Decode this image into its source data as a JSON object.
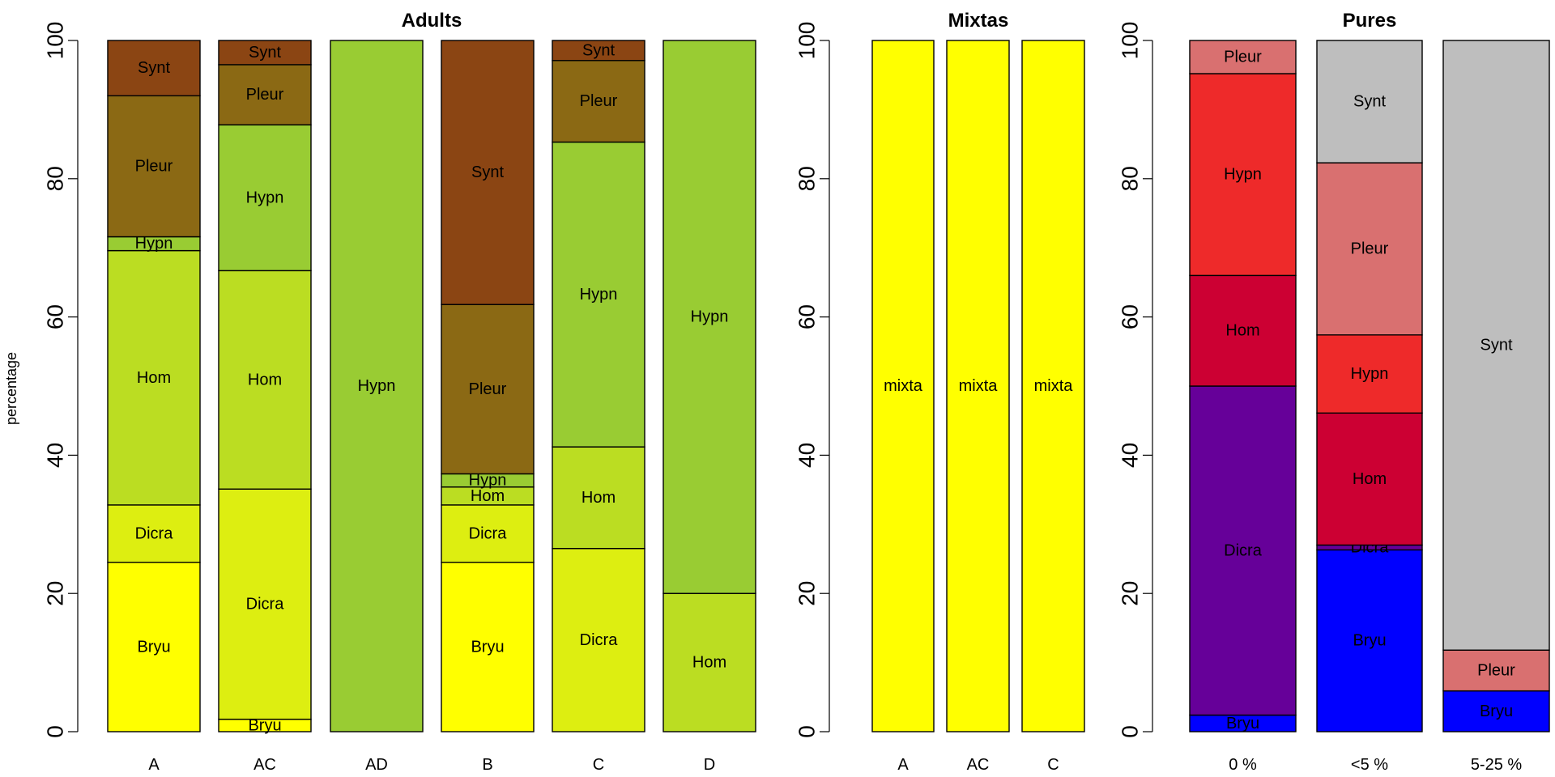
{
  "y_axis_label": "percentage",
  "chart_data": [
    {
      "type": "bar",
      "stacked": true,
      "title": "Adults",
      "ylim": [
        0,
        100
      ],
      "yticks": [
        0,
        20,
        40,
        60,
        80,
        100
      ],
      "categories": [
        "A",
        "AC",
        "AD",
        "B",
        "C",
        "D"
      ],
      "bars": [
        {
          "category": "A",
          "segments": [
            {
              "label": "Bryu",
              "value": 24.5,
              "color": "#FFFF00"
            },
            {
              "label": "Dicra",
              "value": 8.3,
              "color": "#DDEE11"
            },
            {
              "label": "Hom",
              "value": 36.8,
              "color": "#BBDD22"
            },
            {
              "label": "Hypn",
              "value": 2.0,
              "color": "#99CC33"
            },
            {
              "label": "Pleur",
              "value": 20.4,
              "color": "#8B6914"
            },
            {
              "label": "Synt",
              "value": 8.0,
              "color": "#8B4513"
            }
          ]
        },
        {
          "category": "AC",
          "segments": [
            {
              "label": "Bryu",
              "value": 1.8,
              "color": "#FFFF00"
            },
            {
              "label": "Dicra",
              "value": 33.3,
              "color": "#DDEE11"
            },
            {
              "label": "Hom",
              "value": 31.6,
              "color": "#BBDD22"
            },
            {
              "label": "Hypn",
              "value": 21.1,
              "color": "#99CC33"
            },
            {
              "label": "Pleur",
              "value": 8.7,
              "color": "#8B6914"
            },
            {
              "label": "Synt",
              "value": 3.5,
              "color": "#8B4513"
            }
          ]
        },
        {
          "category": "AD",
          "segments": [
            {
              "label": "Hypn",
              "value": 100,
              "color": "#99CC33"
            }
          ]
        },
        {
          "category": "B",
          "segments": [
            {
              "label": "Bryu",
              "value": 24.5,
              "color": "#FFFF00"
            },
            {
              "label": "Dicra",
              "value": 8.3,
              "color": "#DDEE11"
            },
            {
              "label": "Hom",
              "value": 2.6,
              "color": "#BBDD22"
            },
            {
              "label": "Hypn",
              "value": 1.9,
              "color": "#99CC33"
            },
            {
              "label": "Pleur",
              "value": 24.5,
              "color": "#8B6914"
            },
            {
              "label": "Synt",
              "value": 38.2,
              "color": "#8B4513"
            }
          ]
        },
        {
          "category": "C",
          "segments": [
            {
              "label": "Dicra",
              "value": 26.5,
              "color": "#DDEE11"
            },
            {
              "label": "Hom",
              "value": 14.7,
              "color": "#BBDD22"
            },
            {
              "label": "Hypn",
              "value": 44.1,
              "color": "#99CC33"
            },
            {
              "label": "Pleur",
              "value": 11.8,
              "color": "#8B6914"
            },
            {
              "label": "Synt",
              "value": 2.9,
              "color": "#8B4513"
            }
          ]
        },
        {
          "category": "D",
          "segments": [
            {
              "label": "Hom",
              "value": 20.0,
              "color": "#BBDD22"
            },
            {
              "label": "Hypn",
              "value": 80.0,
              "color": "#99CC33"
            }
          ]
        }
      ]
    },
    {
      "type": "bar",
      "stacked": true,
      "title": "Mixtas",
      "ylim": [
        0,
        100
      ],
      "yticks": [
        0,
        20,
        40,
        60,
        80,
        100
      ],
      "categories": [
        "A",
        "AC",
        "C"
      ],
      "bars": [
        {
          "category": "A",
          "segments": [
            {
              "label": "mixta",
              "value": 100,
              "color": "#FFFF00"
            }
          ]
        },
        {
          "category": "AC",
          "segments": [
            {
              "label": "mixta",
              "value": 100,
              "color": "#FFFF00"
            }
          ]
        },
        {
          "category": "C",
          "segments": [
            {
              "label": "mixta",
              "value": 100,
              "color": "#FFFF00"
            }
          ]
        }
      ]
    },
    {
      "type": "bar",
      "stacked": true,
      "title": "Pures",
      "ylim": [
        0,
        100
      ],
      "yticks": [
        0,
        20,
        40,
        60,
        80,
        100
      ],
      "categories": [
        "0 %",
        "<5 %",
        "5-25 %"
      ],
      "bars": [
        {
          "category": "0 %",
          "segments": [
            {
              "label": "Bryu",
              "value": 2.4,
              "color": "#0000FF"
            },
            {
              "label": "Dicra",
              "value": 47.6,
              "color": "#660099"
            },
            {
              "label": "Hom",
              "value": 16.0,
              "color": "#CC0033"
            },
            {
              "label": "Hypn",
              "value": 29.2,
              "color": "#EE2A2A"
            },
            {
              "label": "Pleur",
              "value": 4.8,
              "color": "#D97070"
            }
          ]
        },
        {
          "category": "<5 %",
          "segments": [
            {
              "label": "Bryu",
              "value": 26.3,
              "color": "#0000FF"
            },
            {
              "label": "Dicra",
              "value": 0.7,
              "color": "#660099"
            },
            {
              "label": "Hom",
              "value": 19.1,
              "color": "#CC0033"
            },
            {
              "label": "Hypn",
              "value": 11.3,
              "color": "#EE2A2A"
            },
            {
              "label": "Pleur",
              "value": 24.9,
              "color": "#D97070"
            },
            {
              "label": "Synt",
              "value": 17.7,
              "color": "#BEBEBE"
            }
          ]
        },
        {
          "category": "5-25 %",
          "segments": [
            {
              "label": "Bryu",
              "value": 5.9,
              "color": "#0000FF"
            },
            {
              "label": "Pleur",
              "value": 5.9,
              "color": "#D97070"
            },
            {
              "label": "Synt",
              "value": 88.2,
              "color": "#BEBEBE"
            }
          ]
        }
      ]
    }
  ]
}
